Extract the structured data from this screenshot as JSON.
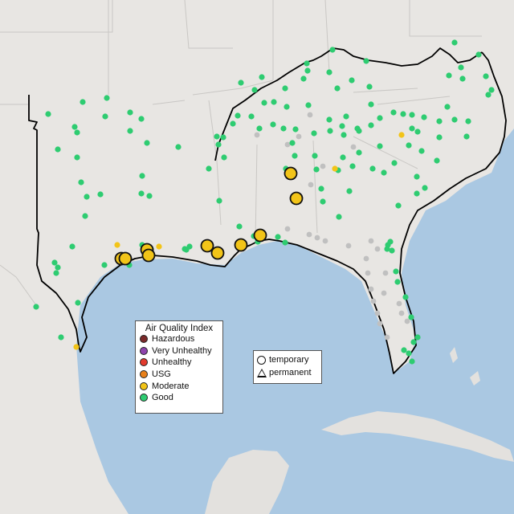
{
  "legend": {
    "title": "Air Quality Index",
    "categories": [
      {
        "label": "Hazardous",
        "color": "#7b2a2a"
      },
      {
        "label": "Very Unhealthy",
        "color": "#8e44ad"
      },
      {
        "label": "Unhealthy",
        "color": "#e23b2e"
      },
      {
        "label": "USG",
        "color": "#e8801a"
      },
      {
        "label": "Moderate",
        "color": "#f2c418"
      },
      {
        "label": "Good",
        "color": "#2ecc71"
      }
    ]
  },
  "site_types": {
    "temporary": "temporary",
    "permanent": "permanent"
  },
  "colors": {
    "water": "#aac8e2",
    "land": "#e8e6e3",
    "border": "#000000",
    "no_data": "#c0c0c0",
    "good": "#2ecc71",
    "moderate": "#f2c418"
  }
}
